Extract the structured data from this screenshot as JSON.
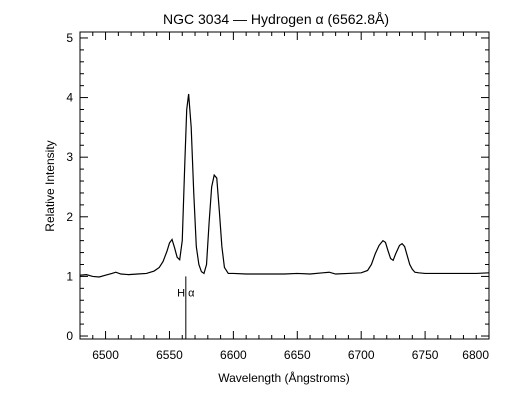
{
  "chart_data": {
    "type": "line",
    "title": "NGC 3034 — Hydrogen α (6562.8Å)",
    "xlabel": "Wavelength (Ångstroms)",
    "ylabel": "Relative Intensity",
    "xlim": [
      6480,
      6800
    ],
    "ylim": [
      -0.05,
      5.1
    ],
    "xticks": [
      6500,
      6550,
      6600,
      6650,
      6700,
      6750,
      6800
    ],
    "yticks": [
      0,
      1,
      2,
      3,
      4,
      5
    ],
    "grid": false,
    "line_color": "#000000",
    "annotation": {
      "label": "H α",
      "x": 6562.8,
      "y_bottom": -0.05,
      "y_top": 1.0
    },
    "series": [
      {
        "x": [
          6480,
          6485,
          6490,
          6495,
          6500,
          6505,
          6508,
          6512,
          6518,
          6525,
          6532,
          6538,
          6542,
          6545,
          6548,
          6550,
          6552,
          6554,
          6556,
          6558,
          6560,
          6562,
          6563.5,
          6565,
          6567,
          6569,
          6571,
          6573,
          6575,
          6577,
          6579,
          6581,
          6583,
          6585,
          6587,
          6589,
          6591,
          6593,
          6596,
          6600,
          6610,
          6620,
          6630,
          6640,
          6650,
          6660,
          6670,
          6675,
          6680,
          6690,
          6700,
          6705,
          6708,
          6711,
          6714,
          6717,
          6719,
          6721,
          6723,
          6725,
          6727,
          6730,
          6732,
          6734,
          6736,
          6738,
          6740,
          6742,
          6745,
          6750,
          6760,
          6770,
          6780,
          6790,
          6800
        ],
        "y": [
          1.02,
          1.03,
          1.0,
          0.99,
          1.02,
          1.05,
          1.07,
          1.04,
          1.03,
          1.04,
          1.05,
          1.09,
          1.15,
          1.25,
          1.42,
          1.56,
          1.62,
          1.48,
          1.32,
          1.28,
          1.6,
          2.9,
          3.8,
          4.06,
          3.5,
          2.4,
          1.5,
          1.2,
          1.08,
          1.05,
          1.2,
          1.9,
          2.5,
          2.7,
          2.65,
          2.1,
          1.5,
          1.15,
          1.05,
          1.05,
          1.04,
          1.04,
          1.04,
          1.04,
          1.05,
          1.04,
          1.06,
          1.07,
          1.04,
          1.05,
          1.06,
          1.1,
          1.2,
          1.38,
          1.52,
          1.6,
          1.57,
          1.43,
          1.3,
          1.27,
          1.38,
          1.52,
          1.55,
          1.5,
          1.35,
          1.2,
          1.12,
          1.07,
          1.06,
          1.05,
          1.05,
          1.05,
          1.05,
          1.05,
          1.06
        ]
      }
    ]
  }
}
